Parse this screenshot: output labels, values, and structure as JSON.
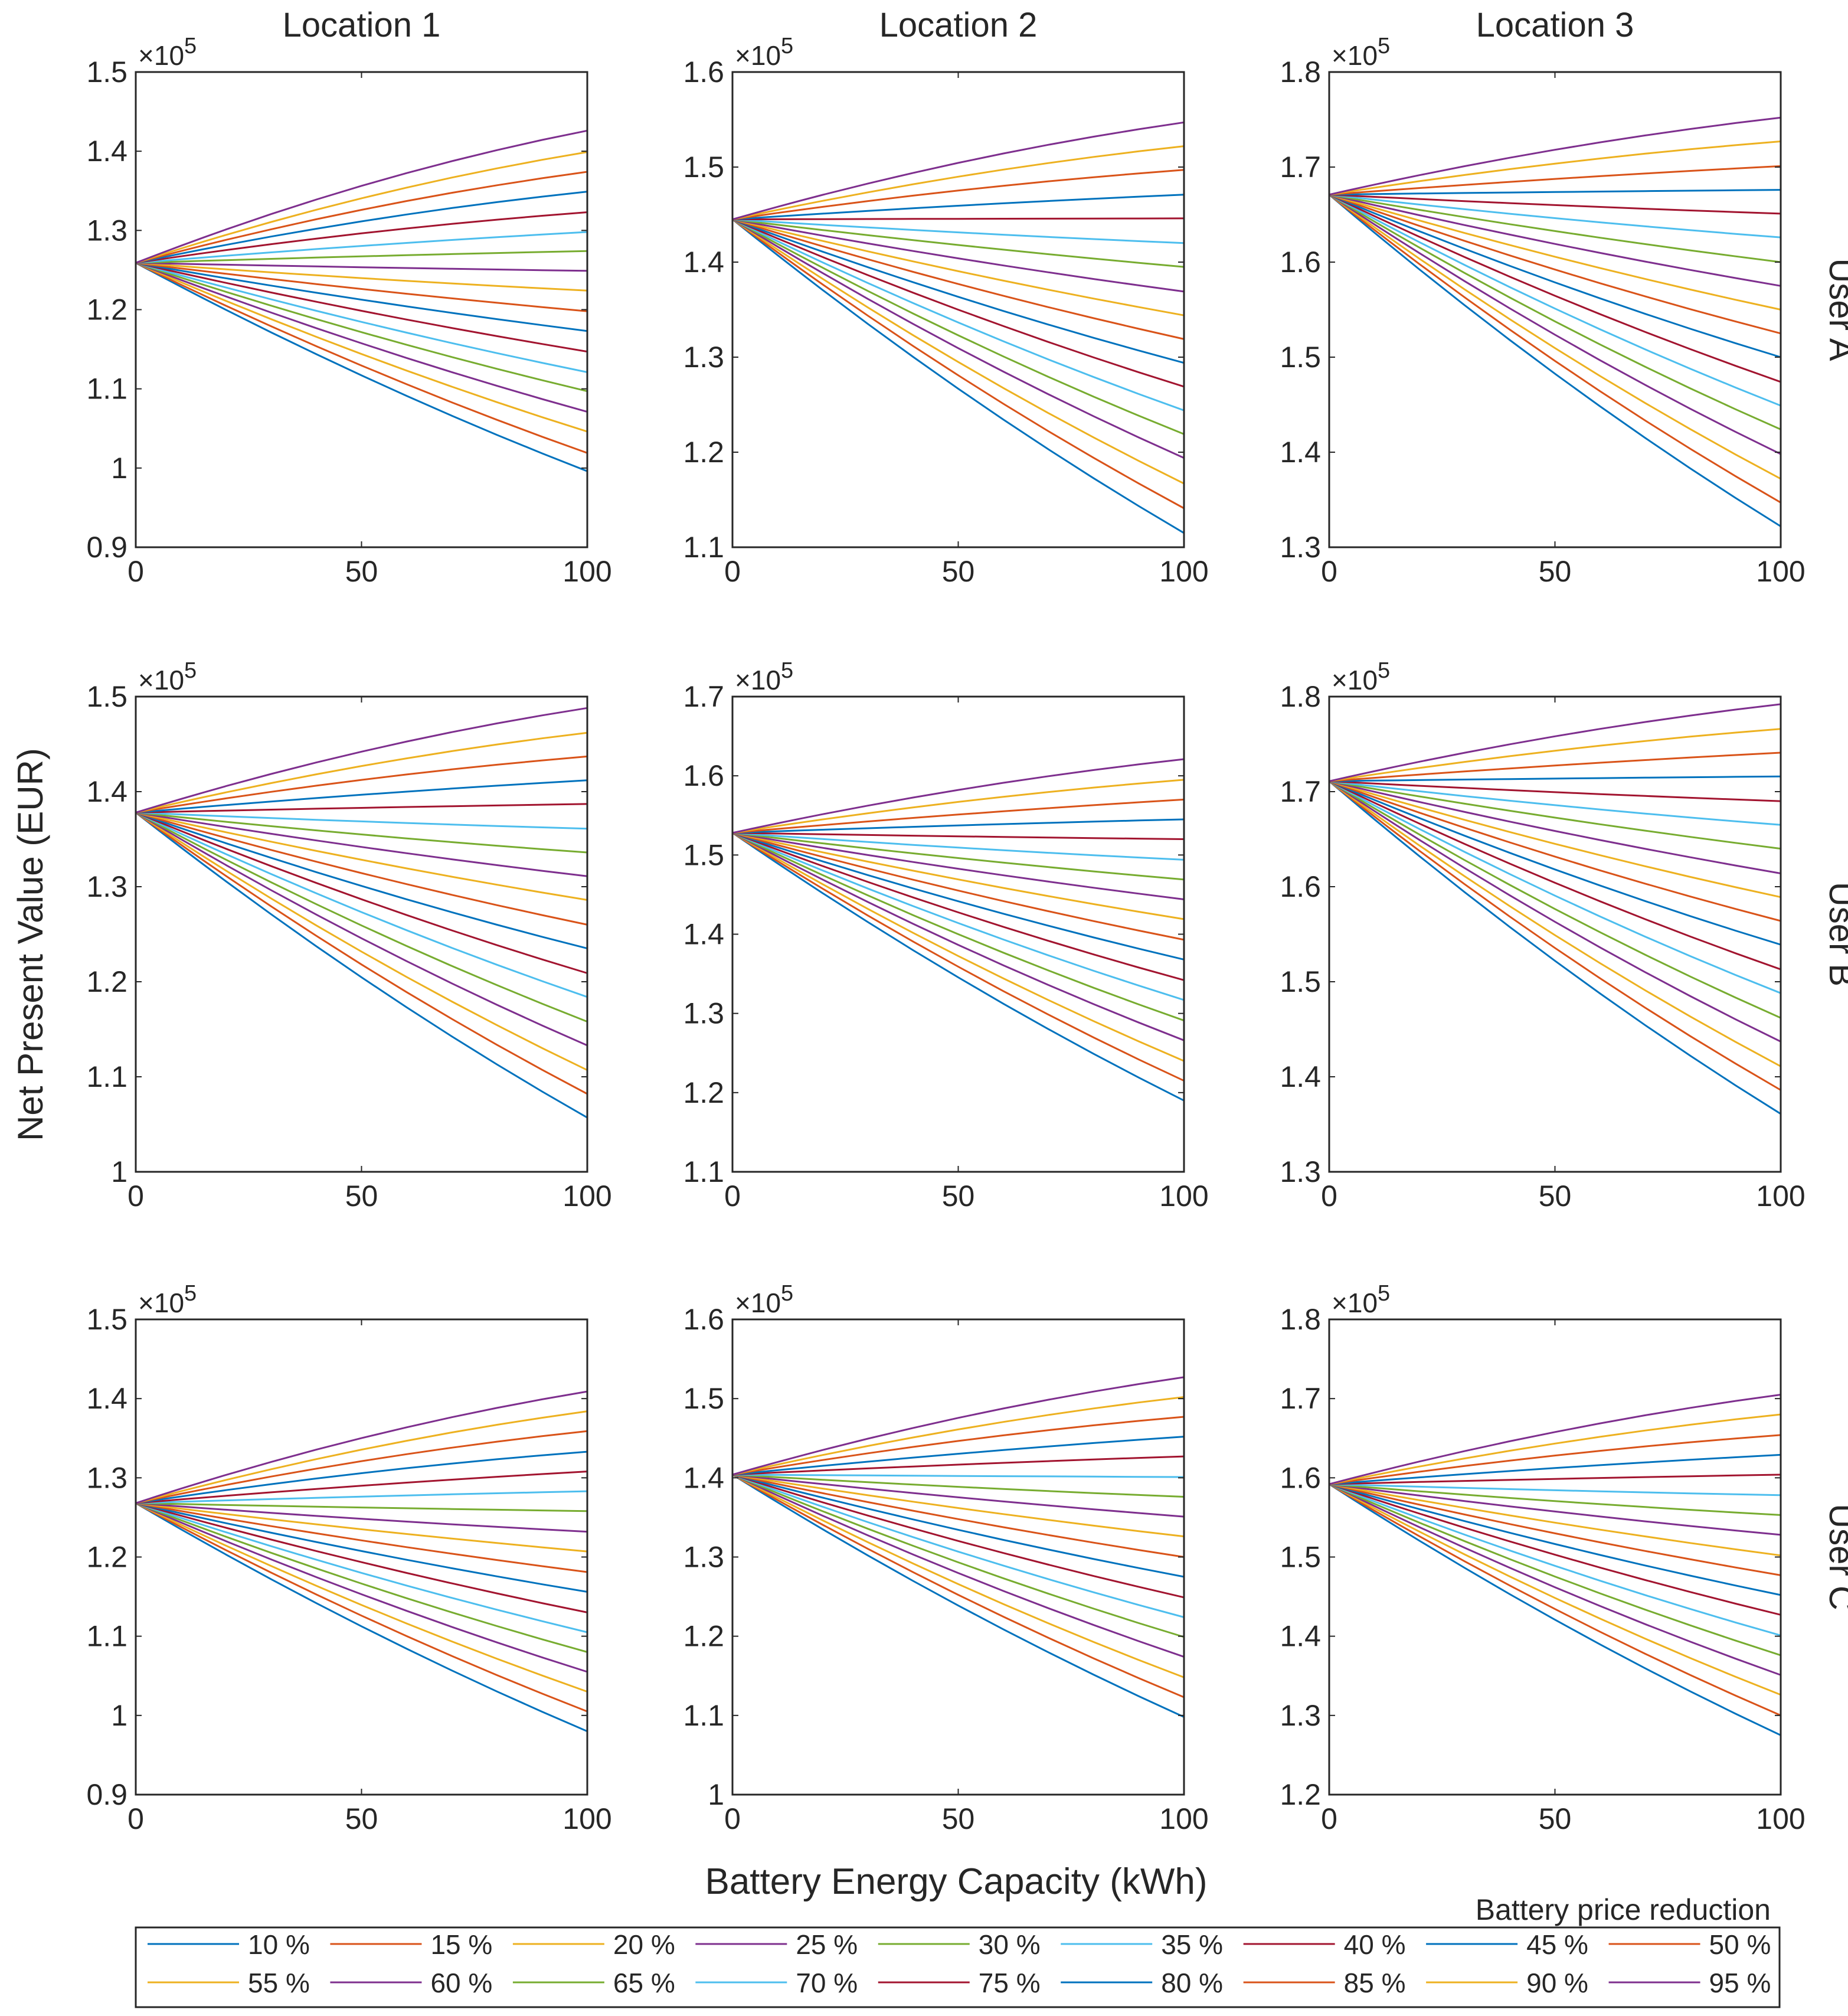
{
  "chart_data": {
    "type": "line",
    "column_titles": [
      "Location 1",
      "Location 2",
      "Location 3"
    ],
    "row_titles": [
      "User A",
      "User B",
      "User C"
    ],
    "ylabel": "Net Present Value (EUR)",
    "xlabel": "Battery Energy Capacity (kWh)",
    "exponent_label": {
      "base": "×10",
      "power": "5"
    },
    "x": [
      0,
      5,
      10,
      15,
      20,
      30,
      40,
      50,
      60,
      70,
      80,
      90,
      100
    ],
    "xlim": [
      0,
      100
    ],
    "xticks": [
      "0",
      "50",
      "100"
    ],
    "legend": {
      "title": "Battery price reduction",
      "placement": "bottom",
      "entries": [
        "10 %",
        "15 %",
        "20 %",
        "25 %",
        "30 %",
        "35 %",
        "40 %",
        "45 %",
        "50 %",
        "55 %",
        "60 %",
        "65 %",
        "70 %",
        "75 %",
        "80 %",
        "85 %",
        "90 %",
        "95 %"
      ]
    },
    "series_colors": [
      "#0072BD",
      "#D95319",
      "#EDB120",
      "#7E2F8E",
      "#77AC30",
      "#4DBEEE",
      "#A2142F",
      "#0072BD",
      "#D95319",
      "#EDB120",
      "#7E2F8E",
      "#77AC30",
      "#4DBEEE",
      "#A2142F",
      "#0072BD",
      "#D95319",
      "#EDB120",
      "#7E2F8E"
    ],
    "series_endpoints_note": "values at x=100 for series 10 % … 95 %; all series start at the shared start value at x=0 (units: ×10^5 EUR)",
    "panels": [
      {
        "row": 0,
        "col": 0,
        "ylim": [
          0.9,
          1.5
        ],
        "yticks": [
          "0.9",
          "1",
          "1.1",
          "1.2",
          "1.3",
          "1.4",
          "1.5"
        ],
        "start": 1.259,
        "end_values": [
          0.996,
          1.019,
          1.046,
          1.071,
          1.097,
          1.121,
          1.147,
          1.173,
          1.198,
          1.224,
          1.249,
          1.274,
          1.298,
          1.323,
          1.349,
          1.374,
          1.399,
          1.426
        ]
      },
      {
        "row": 0,
        "col": 1,
        "ylim": [
          1.1,
          1.6
        ],
        "yticks": [
          "1.1",
          "1.2",
          "1.3",
          "1.4",
          "1.5",
          "1.6"
        ],
        "start": 1.445,
        "end_values": [
          1.115,
          1.141,
          1.167,
          1.194,
          1.219,
          1.244,
          1.269,
          1.294,
          1.319,
          1.344,
          1.369,
          1.395,
          1.42,
          1.446,
          1.471,
          1.497,
          1.522,
          1.547
        ]
      },
      {
        "row": 0,
        "col": 2,
        "ylim": [
          1.3,
          1.8
        ],
        "yticks": [
          "1.3",
          "1.4",
          "1.5",
          "1.6",
          "1.7",
          "1.8"
        ],
        "start": 1.671,
        "end_values": [
          1.322,
          1.347,
          1.372,
          1.398,
          1.424,
          1.449,
          1.474,
          1.5,
          1.525,
          1.55,
          1.575,
          1.6,
          1.626,
          1.651,
          1.676,
          1.701,
          1.727,
          1.752
        ]
      },
      {
        "row": 1,
        "col": 0,
        "ylim": [
          1.0,
          1.5
        ],
        "yticks": [
          "1",
          "1.1",
          "1.2",
          "1.3",
          "1.4",
          "1.5"
        ],
        "start": 1.378,
        "end_values": [
          1.057,
          1.082,
          1.107,
          1.133,
          1.158,
          1.184,
          1.209,
          1.235,
          1.26,
          1.286,
          1.311,
          1.336,
          1.361,
          1.387,
          1.412,
          1.437,
          1.462,
          1.488
        ]
      },
      {
        "row": 1,
        "col": 1,
        "ylim": [
          1.1,
          1.7
        ],
        "yticks": [
          "1.1",
          "1.2",
          "1.3",
          "1.4",
          "1.5",
          "1.6",
          "1.7"
        ],
        "start": 1.528,
        "end_values": [
          1.19,
          1.215,
          1.24,
          1.266,
          1.291,
          1.317,
          1.342,
          1.368,
          1.393,
          1.419,
          1.444,
          1.469,
          1.494,
          1.52,
          1.545,
          1.57,
          1.595,
          1.621
        ]
      },
      {
        "row": 1,
        "col": 2,
        "ylim": [
          1.3,
          1.8
        ],
        "yticks": [
          "1.3",
          "1.4",
          "1.5",
          "1.6",
          "1.7",
          "1.8"
        ],
        "start": 1.711,
        "end_values": [
          1.361,
          1.386,
          1.411,
          1.437,
          1.462,
          1.488,
          1.513,
          1.539,
          1.564,
          1.589,
          1.614,
          1.64,
          1.665,
          1.69,
          1.716,
          1.741,
          1.766,
          1.792
        ]
      },
      {
        "row": 2,
        "col": 0,
        "ylim": [
          0.9,
          1.5
        ],
        "yticks": [
          "0.9",
          "1",
          "1.1",
          "1.2",
          "1.3",
          "1.4",
          "1.5"
        ],
        "start": 1.268,
        "end_values": [
          0.98,
          1.005,
          1.03,
          1.055,
          1.08,
          1.105,
          1.13,
          1.156,
          1.181,
          1.207,
          1.232,
          1.258,
          1.283,
          1.308,
          1.333,
          1.359,
          1.384,
          1.409
        ]
      },
      {
        "row": 2,
        "col": 1,
        "ylim": [
          1.0,
          1.6
        ],
        "yticks": [
          "1",
          "1.1",
          "1.2",
          "1.3",
          "1.4",
          "1.5",
          "1.6"
        ],
        "start": 1.404,
        "end_values": [
          1.098,
          1.123,
          1.148,
          1.174,
          1.199,
          1.224,
          1.249,
          1.275,
          1.3,
          1.326,
          1.351,
          1.376,
          1.401,
          1.427,
          1.452,
          1.477,
          1.502,
          1.527
        ]
      },
      {
        "row": 2,
        "col": 2,
        "ylim": [
          1.2,
          1.8
        ],
        "yticks": [
          "1.2",
          "1.3",
          "1.4",
          "1.5",
          "1.6",
          "1.7",
          "1.8"
        ],
        "start": 1.592,
        "end_values": [
          1.275,
          1.3,
          1.326,
          1.351,
          1.376,
          1.401,
          1.427,
          1.452,
          1.477,
          1.502,
          1.528,
          1.553,
          1.578,
          1.604,
          1.629,
          1.654,
          1.68,
          1.705
        ]
      }
    ]
  }
}
